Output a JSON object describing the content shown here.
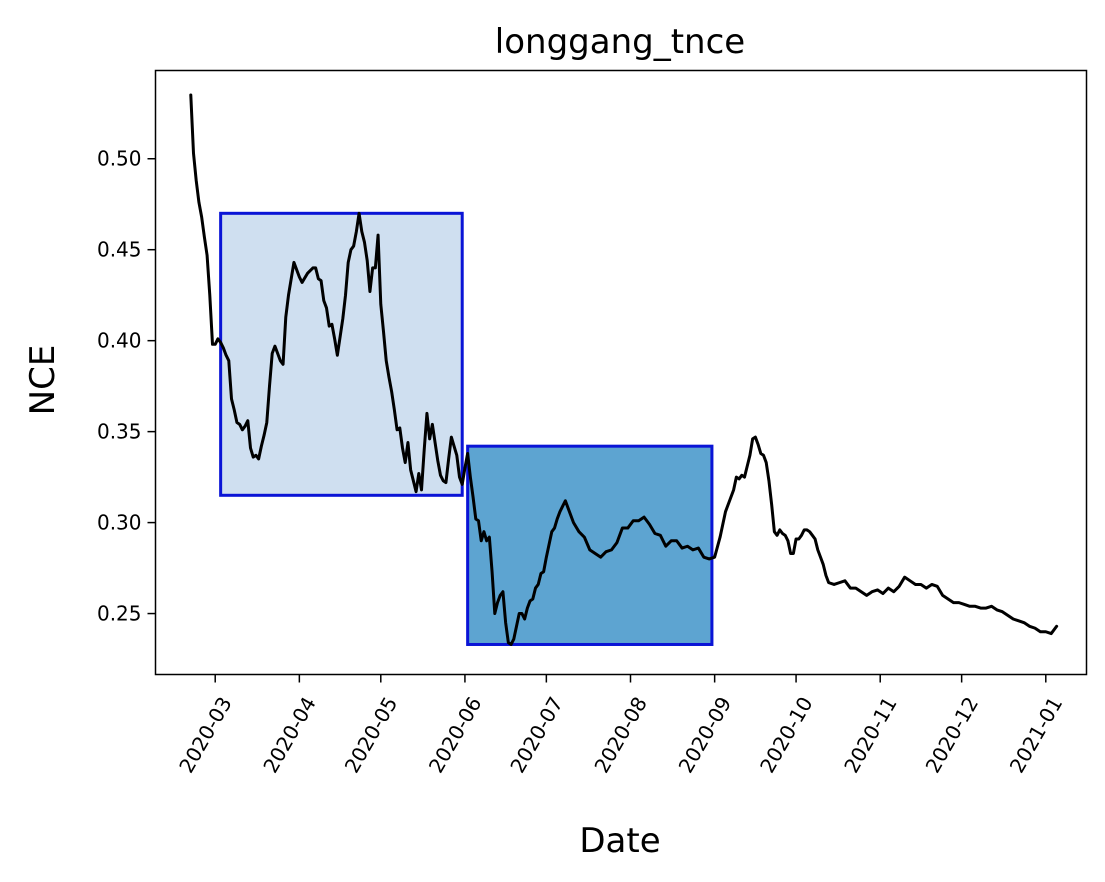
{
  "chart_data": {
    "type": "line",
    "title": "longgang_tnce",
    "xlabel": "Date",
    "ylabel": "NCE",
    "x_axis_type": "date",
    "xlim": [
      "2020-02-08",
      "2021-01-16"
    ],
    "ylim": [
      0.2165,
      0.5485
    ],
    "xticks": [
      "2020-03",
      "2020-04",
      "2020-05",
      "2020-06",
      "2020-07",
      "2020-08",
      "2020-09",
      "2020-10",
      "2020-11",
      "2020-12",
      "2021-01"
    ],
    "yticks": [
      "0.25",
      "0.30",
      "0.35",
      "0.40",
      "0.45",
      "0.50"
    ],
    "grid": false,
    "legend": "none",
    "highlight_regions": [
      {
        "x_start": "2020-03-03",
        "x_end": "2020-05-31",
        "y_min": 0.315,
        "y_max": 0.47,
        "fill": "#cfdff0",
        "stroke": "#0a14d6"
      },
      {
        "x_start": "2020-06-02",
        "x_end": "2020-08-31",
        "y_min": 0.233,
        "y_max": 0.342,
        "fill": "#5da4d1",
        "stroke": "#0a14d6"
      }
    ],
    "series": [
      {
        "color": "#000000",
        "x": [
          "2020-02-21",
          "2020-02-22",
          "2020-02-23",
          "2020-02-24",
          "2020-02-25",
          "2020-02-26",
          "2020-02-27",
          "2020-02-28",
          "2020-02-29",
          "2020-03-01",
          "2020-03-02",
          "2020-03-03",
          "2020-03-04",
          "2020-03-05",
          "2020-03-06",
          "2020-03-07",
          "2020-03-08",
          "2020-03-09",
          "2020-03-10",
          "2020-03-11",
          "2020-03-12",
          "2020-03-13",
          "2020-03-14",
          "2020-03-15",
          "2020-03-16",
          "2020-03-17",
          "2020-03-18",
          "2020-03-19",
          "2020-03-20",
          "2020-03-21",
          "2020-03-22",
          "2020-03-23",
          "2020-03-24",
          "2020-03-25",
          "2020-03-26",
          "2020-03-27",
          "2020-03-28",
          "2020-03-30",
          "2020-04-01",
          "2020-04-02",
          "2020-04-04",
          "2020-04-06",
          "2020-04-07",
          "2020-04-08",
          "2020-04-09",
          "2020-04-10",
          "2020-04-11",
          "2020-04-12",
          "2020-04-13",
          "2020-04-14",
          "2020-04-15",
          "2020-04-17",
          "2020-04-18",
          "2020-04-19",
          "2020-04-20",
          "2020-04-21",
          "2020-04-22",
          "2020-04-23",
          "2020-04-24",
          "2020-04-25",
          "2020-04-26",
          "2020-04-27",
          "2020-04-28",
          "2020-04-29",
          "2020-04-30",
          "2020-05-01",
          "2020-05-02",
          "2020-05-03",
          "2020-05-04",
          "2020-05-05",
          "2020-05-06",
          "2020-05-07",
          "2020-05-08",
          "2020-05-09",
          "2020-05-10",
          "2020-05-11",
          "2020-05-12",
          "2020-05-13",
          "2020-05-14",
          "2020-05-15",
          "2020-05-16",
          "2020-05-17",
          "2020-05-18",
          "2020-05-19",
          "2020-05-20",
          "2020-05-21",
          "2020-05-22",
          "2020-05-23",
          "2020-05-24",
          "2020-05-25",
          "2020-05-26",
          "2020-05-27",
          "2020-05-28",
          "2020-05-29",
          "2020-05-30",
          "2020-05-31",
          "2020-06-01",
          "2020-06-02",
          "2020-06-03",
          "2020-06-04",
          "2020-06-05",
          "2020-06-06",
          "2020-06-07",
          "2020-06-08",
          "2020-06-09",
          "2020-06-10",
          "2020-06-11",
          "2020-06-12",
          "2020-06-13",
          "2020-06-14",
          "2020-06-15",
          "2020-06-16",
          "2020-06-17",
          "2020-06-18",
          "2020-06-19",
          "2020-06-20",
          "2020-06-21",
          "2020-06-22",
          "2020-06-23",
          "2020-06-24",
          "2020-06-25",
          "2020-06-26",
          "2020-06-27",
          "2020-06-28",
          "2020-06-29",
          "2020-06-30",
          "2020-07-01",
          "2020-07-02",
          "2020-07-03",
          "2020-07-04",
          "2020-07-05",
          "2020-07-06",
          "2020-07-07",
          "2020-07-08",
          "2020-07-09",
          "2020-07-11",
          "2020-07-13",
          "2020-07-15",
          "2020-07-17",
          "2020-07-19",
          "2020-07-21",
          "2020-07-23",
          "2020-07-25",
          "2020-07-27",
          "2020-07-29",
          "2020-07-31",
          "2020-08-02",
          "2020-08-04",
          "2020-08-06",
          "2020-08-08",
          "2020-08-10",
          "2020-08-12",
          "2020-08-14",
          "2020-08-16",
          "2020-08-18",
          "2020-08-20",
          "2020-08-22",
          "2020-08-24",
          "2020-08-26",
          "2020-08-28",
          "2020-08-30",
          "2020-09-01",
          "2020-09-03",
          "2020-09-05",
          "2020-09-07",
          "2020-09-08",
          "2020-09-09",
          "2020-09-10",
          "2020-09-11",
          "2020-09-12",
          "2020-09-13",
          "2020-09-14",
          "2020-09-15",
          "2020-09-16",
          "2020-09-17",
          "2020-09-18",
          "2020-09-19",
          "2020-09-20",
          "2020-09-21",
          "2020-09-22",
          "2020-09-23",
          "2020-09-24",
          "2020-09-25",
          "2020-09-26",
          "2020-09-27",
          "2020-09-28",
          "2020-09-29",
          "2020-09-30",
          "2020-10-01",
          "2020-10-02",
          "2020-10-03",
          "2020-10-04",
          "2020-10-05",
          "2020-10-06",
          "2020-10-07",
          "2020-10-08",
          "2020-10-09",
          "2020-10-10",
          "2020-10-11",
          "2020-10-12",
          "2020-10-13",
          "2020-10-15",
          "2020-10-17",
          "2020-10-19",
          "2020-10-21",
          "2020-10-23",
          "2020-10-25",
          "2020-10-27",
          "2020-10-29",
          "2020-10-31",
          "2020-11-02",
          "2020-11-04",
          "2020-11-06",
          "2020-11-08",
          "2020-11-10",
          "2020-11-12",
          "2020-11-14",
          "2020-11-16",
          "2020-11-18",
          "2020-11-20",
          "2020-11-22",
          "2020-11-24",
          "2020-11-26",
          "2020-11-28",
          "2020-11-30",
          "2020-12-02",
          "2020-12-04",
          "2020-12-06",
          "2020-12-08",
          "2020-12-10",
          "2020-12-12",
          "2020-12-14",
          "2020-12-16",
          "2020-12-18",
          "2020-12-20",
          "2020-12-22",
          "2020-12-24",
          "2020-12-26",
          "2020-12-28",
          "2020-12-30",
          "2021-01-01",
          "2021-01-03",
          "2021-01-05"
        ],
        "y": [
          0.535,
          0.503,
          0.488,
          0.476,
          0.468,
          0.457,
          0.447,
          0.425,
          0.398,
          0.398,
          0.401,
          0.399,
          0.396,
          0.392,
          0.389,
          0.368,
          0.362,
          0.355,
          0.354,
          0.351,
          0.353,
          0.356,
          0.341,
          0.336,
          0.337,
          0.335,
          0.342,
          0.348,
          0.355,
          0.375,
          0.393,
          0.397,
          0.393,
          0.389,
          0.387,
          0.413,
          0.425,
          0.443,
          0.435,
          0.432,
          0.437,
          0.44,
          0.44,
          0.434,
          0.433,
          0.422,
          0.418,
          0.408,
          0.409,
          0.401,
          0.392,
          0.412,
          0.425,
          0.443,
          0.45,
          0.452,
          0.46,
          0.47,
          0.46,
          0.454,
          0.444,
          0.427,
          0.44,
          0.44,
          0.458,
          0.42,
          0.405,
          0.389,
          0.38,
          0.372,
          0.362,
          0.351,
          0.352,
          0.341,
          0.333,
          0.344,
          0.329,
          0.323,
          0.317,
          0.327,
          0.318,
          0.34,
          0.36,
          0.346,
          0.354,
          0.344,
          0.334,
          0.326,
          0.323,
          0.322,
          0.335,
          0.347,
          0.342,
          0.337,
          0.325,
          0.321,
          0.33,
          0.338,
          0.325,
          0.314,
          0.302,
          0.301,
          0.29,
          0.295,
          0.29,
          0.292,
          0.273,
          0.25,
          0.256,
          0.26,
          0.262,
          0.245,
          0.234,
          0.233,
          0.236,
          0.243,
          0.25,
          0.25,
          0.247,
          0.253,
          0.257,
          0.258,
          0.264,
          0.266,
          0.272,
          0.273,
          0.281,
          0.288,
          0.295,
          0.297,
          0.302,
          0.306,
          0.309,
          0.312,
          0.308,
          0.3,
          0.295,
          0.292,
          0.285,
          0.283,
          0.281,
          0.284,
          0.285,
          0.289,
          0.297,
          0.297,
          0.301,
          0.301,
          0.303,
          0.299,
          0.294,
          0.293,
          0.287,
          0.29,
          0.29,
          0.286,
          0.287,
          0.285,
          0.286,
          0.281,
          0.28,
          0.281,
          0.292,
          0.306,
          0.314,
          0.318,
          0.325,
          0.324,
          0.326,
          0.325,
          0.331,
          0.337,
          0.346,
          0.347,
          0.343,
          0.338,
          0.337,
          0.333,
          0.323,
          0.31,
          0.295,
          0.293,
          0.296,
          0.294,
          0.293,
          0.29,
          0.283,
          0.283,
          0.291,
          0.291,
          0.293,
          0.296,
          0.296,
          0.295,
          0.293,
          0.291,
          0.285,
          0.281,
          0.277,
          0.271,
          0.267,
          0.266,
          0.267,
          0.268,
          0.264,
          0.264,
          0.262,
          0.26,
          0.262,
          0.263,
          0.261,
          0.264,
          0.262,
          0.265,
          0.27,
          0.268,
          0.266,
          0.266,
          0.264,
          0.266,
          0.265,
          0.26,
          0.258,
          0.256,
          0.256,
          0.255,
          0.254,
          0.254,
          0.253,
          0.253,
          0.254,
          0.252,
          0.251,
          0.249,
          0.247,
          0.246,
          0.245,
          0.243,
          0.242,
          0.24,
          0.24,
          0.239,
          0.243
        ]
      }
    ]
  }
}
